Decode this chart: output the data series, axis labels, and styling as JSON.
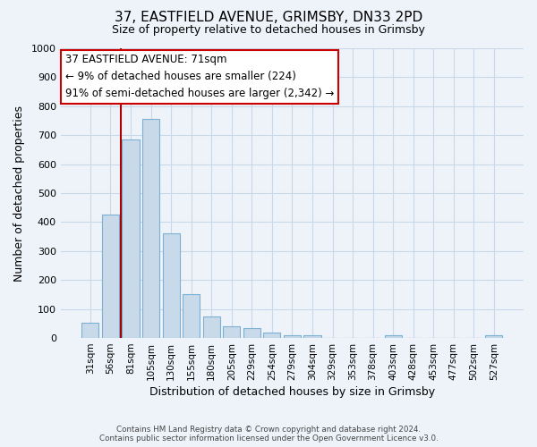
{
  "title_line1": "37, EASTFIELD AVENUE, GRIMSBY, DN33 2PD",
  "title_line2": "Size of property relative to detached houses in Grimsby",
  "xlabel": "Distribution of detached houses by size in Grimsby",
  "ylabel": "Number of detached properties",
  "bar_labels": [
    "31sqm",
    "56sqm",
    "81sqm",
    "105sqm",
    "130sqm",
    "155sqm",
    "180sqm",
    "205sqm",
    "229sqm",
    "254sqm",
    "279sqm",
    "304sqm",
    "329sqm",
    "353sqm",
    "378sqm",
    "403sqm",
    "428sqm",
    "453sqm",
    "477sqm",
    "502sqm",
    "527sqm"
  ],
  "bar_values": [
    52,
    425,
    685,
    757,
    362,
    152,
    75,
    40,
    33,
    18,
    10,
    10,
    0,
    0,
    0,
    10,
    0,
    0,
    0,
    0,
    8
  ],
  "bar_color": "#c8daea",
  "bar_edge_color": "#7bafd4",
  "vline_color": "#aa0000",
  "ylim": [
    0,
    1000
  ],
  "yticks": [
    0,
    100,
    200,
    300,
    400,
    500,
    600,
    700,
    800,
    900,
    1000
  ],
  "annotation_title": "37 EASTFIELD AVENUE: 71sqm",
  "annotation_line1": "← 9% of detached houses are smaller (224)",
  "annotation_line2": "91% of semi-detached houses are larger (2,342) →",
  "annotation_box_color": "#ffffff",
  "annotation_box_edge": "#cc0000",
  "footer_line1": "Contains HM Land Registry data © Crown copyright and database right 2024.",
  "footer_line2": "Contains public sector information licensed under the Open Government Licence v3.0.",
  "grid_color": "#c8d8e8",
  "background_color": "#eef3fa"
}
